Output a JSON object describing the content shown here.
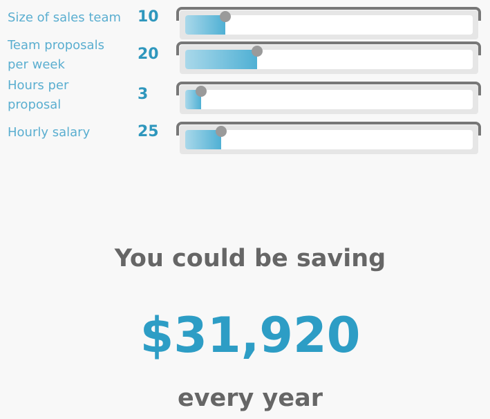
{
  "inputs": [
    {
      "label": "Size of sales team",
      "value": "10",
      "level": 0.14
    },
    {
      "label": "Team proposals per week",
      "value": "20",
      "level": 0.25
    },
    {
      "label": "Hours per proposal",
      "value": "3",
      "level": 0.055
    },
    {
      "label": "Hourly salary",
      "value": "25",
      "level": 0.125
    }
  ],
  "result": {
    "heading": "You could be saving",
    "amount": "$31,920",
    "period": "every year"
  },
  "colors": {
    "label": "#5aaed0",
    "value": "#2f97bd",
    "amount": "#2d9dc5",
    "heading": "#666666",
    "fill_start": "#a9d8ea",
    "fill_end": "#4fb0d4",
    "handle": "#9a9a9a",
    "background": "#f8f8f8"
  }
}
